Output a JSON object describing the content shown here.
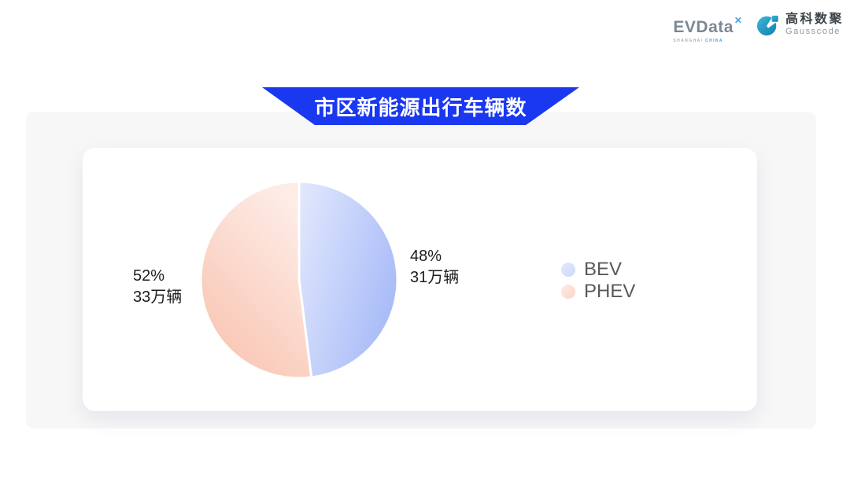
{
  "header": {
    "evdata": {
      "name": "EVData",
      "mark": "✕",
      "sub_left": "SHANGHAI",
      "sub_right": "CHINA"
    },
    "gausscode": {
      "cn": "高科数聚",
      "en": "Gausscode"
    }
  },
  "banner": {
    "title": "市区新能源出行车辆数",
    "bg_color": "#1a38f0",
    "text_color": "#ffffff"
  },
  "chart_data": {
    "type": "pie",
    "title": "市区新能源出行车辆数",
    "unit": "万辆",
    "start_angle": 90,
    "clockwise": true,
    "legend_position": "right",
    "gap_color": "#ffffff",
    "series": [
      {
        "name": "BEV",
        "value": 31,
        "percent": 48,
        "label": "48%",
        "value_label": "31万辆",
        "gradient": [
          "#e3e9fd",
          "#a9bcf8"
        ],
        "legend_color": "#cdd9fb"
      },
      {
        "name": "PHEV",
        "value": 33,
        "percent": 52,
        "label": "52%",
        "value_label": "33万辆",
        "gradient": [
          "#fdece6",
          "#f9c2af"
        ],
        "legend_color": "#fcd4c6"
      }
    ]
  }
}
